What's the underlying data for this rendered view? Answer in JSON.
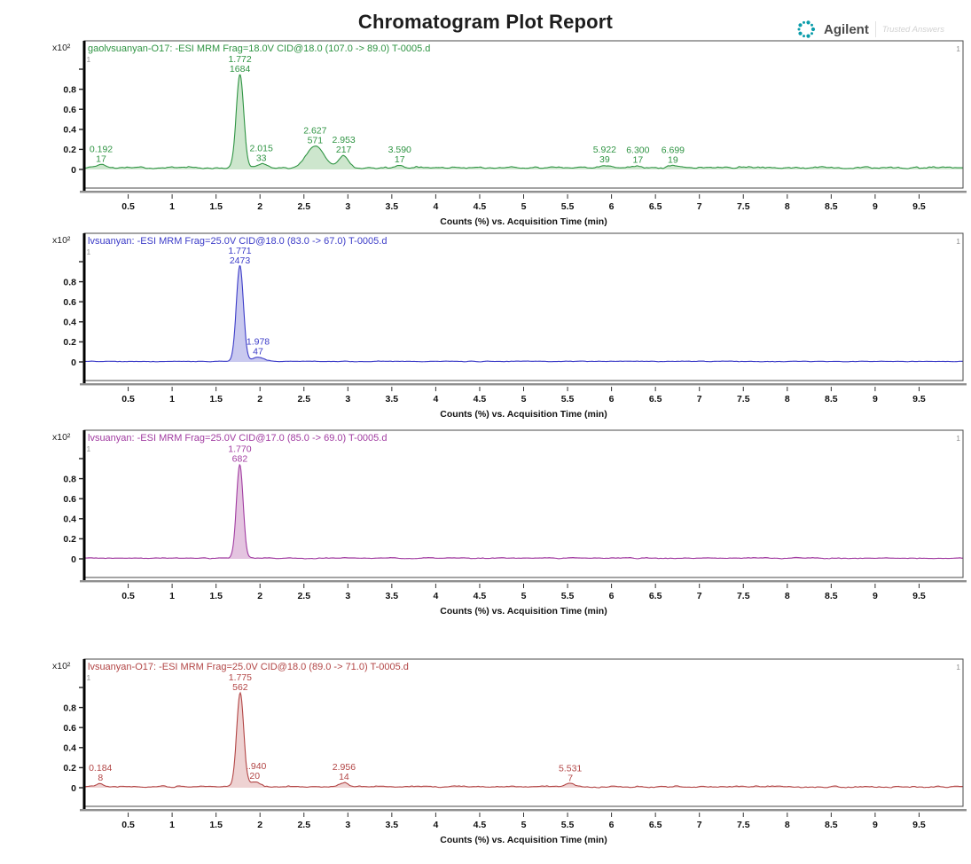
{
  "page": {
    "title": "Chromatogram Plot Report"
  },
  "brand": {
    "name": "Agilent",
    "tagline": "Trusted Answers",
    "logo_color": "#0b9dab"
  },
  "axes": {
    "x_label": "Counts (%) vs. Acquisition Time (min)",
    "x_ticks": [
      "0.5",
      "1",
      "1.5",
      "2",
      "2.5",
      "3",
      "3.5",
      "4",
      "4.5",
      "5",
      "5.5",
      "6",
      "6.5",
      "7",
      "7.5",
      "8",
      "8.5",
      "9",
      "9.5"
    ],
    "x_range": [
      0,
      10
    ],
    "y_scale_label": "x10²",
    "y_tick_labels": [
      "0.8",
      "0.6",
      "0.4",
      "0.2",
      "0"
    ],
    "y_tick_values": [
      0.8,
      0.6,
      0.4,
      0.2,
      0
    ],
    "y_top_tick": 1.0,
    "corner_marker": "1"
  },
  "chart_data": [
    {
      "type": "line",
      "title": "gaolvsuanyan-O17: -ESI MRM Frag=18.0V CID@18.0 (107.0 -> 89.0) T-0005.d",
      "color": "#2f9443",
      "fill_color": "#cde6cd",
      "xlabel": "Counts (%) vs. Acquisition Time (min)",
      "xlim": [
        0,
        10
      ],
      "ylim": [
        0,
        1.0
      ],
      "baseline": 0.018,
      "noise": 0.011,
      "peaks": [
        {
          "rt": 0.192,
          "rt_label": "0.192",
          "area_label": "17",
          "height": 0.03,
          "sigma": 0.045
        },
        {
          "rt": 1.772,
          "rt_label": "1.772",
          "area_label": "1684",
          "height": 0.93,
          "sigma": 0.042
        },
        {
          "rt": 2.015,
          "rt_label": "2.015",
          "area_label": "33",
          "height": 0.04,
          "sigma": 0.065
        },
        {
          "rt": 2.627,
          "rt_label": "2.627",
          "area_label": "571",
          "height": 0.215,
          "sigma": 0.095
        },
        {
          "rt": 2.953,
          "rt_label": "2.953",
          "area_label": "217",
          "height": 0.125,
          "sigma": 0.055
        },
        {
          "rt": 3.59,
          "rt_label": "3.590",
          "area_label": "17",
          "height": 0.025,
          "sigma": 0.05
        },
        {
          "rt": 5.922,
          "rt_label": "5.922",
          "area_label": "39",
          "height": 0.028,
          "sigma": 0.06
        },
        {
          "rt": 6.3,
          "rt_label": "6.300",
          "area_label": "17",
          "height": 0.022,
          "sigma": 0.05
        },
        {
          "rt": 6.699,
          "rt_label": "6.699",
          "area_label": "19",
          "height": 0.022,
          "sigma": 0.05
        }
      ]
    },
    {
      "type": "line",
      "title": "lvsuanyan: -ESI MRM Frag=25.0V CID@18.0 (83.0 -> 67.0) T-0005.d",
      "color": "#3c3cc8",
      "fill_color": "#c9c9ef",
      "xlabel": "Counts (%) vs. Acquisition Time (min)",
      "xlim": [
        0,
        10
      ],
      "ylim": [
        0,
        1.0
      ],
      "baseline": 0.005,
      "noise": 0.004,
      "peaks": [
        {
          "rt": 1.771,
          "rt_label": "1.771",
          "area_label": "2473",
          "height": 0.955,
          "sigma": 0.04
        },
        {
          "rt": 1.978,
          "rt_label": "1.978",
          "area_label": "47",
          "height": 0.042,
          "sigma": 0.07
        }
      ]
    },
    {
      "type": "line",
      "title": "lvsuanyan: -ESI MRM Frag=25.0V CID@17.0 (85.0 -> 69.0) T-0005.d",
      "color": "#a13ca1",
      "fill_color": "#e4c4e0",
      "xlabel": "Counts (%) vs. Acquisition Time (min)",
      "xlim": [
        0,
        10
      ],
      "ylim": [
        0,
        1.0
      ],
      "baseline": 0.007,
      "noise": 0.006,
      "peaks": [
        {
          "rt": 1.77,
          "rt_label": "1.770",
          "area_label": "682",
          "height": 0.935,
          "sigma": 0.038
        }
      ]
    },
    {
      "type": "line",
      "title": "lvsuanyan-O17: -ESI MRM Frag=25.0V CID@18.0 (89.0 -> 71.0) T-0005.d",
      "color": "#b24545",
      "fill_color": "#eed2d2",
      "xlabel": "Counts (%) vs. Acquisition Time (min)",
      "xlim": [
        0,
        10
      ],
      "ylim": [
        0,
        1.0
      ],
      "baseline": 0.01,
      "noise": 0.009,
      "peaks": [
        {
          "rt": 0.184,
          "rt_label": "0.184",
          "area_label": "8",
          "height": 0.035,
          "sigma": 0.04
        },
        {
          "rt": 1.775,
          "rt_label": "1.775",
          "area_label": "562",
          "height": 0.935,
          "sigma": 0.04
        },
        {
          "rt": 1.94,
          "rt_label": "1.940",
          "area_label": "20",
          "height": 0.05,
          "sigma": 0.06
        },
        {
          "rt": 2.956,
          "rt_label": "2.956",
          "area_label": "14",
          "height": 0.045,
          "sigma": 0.045
        },
        {
          "rt": 5.531,
          "rt_label": "5.531",
          "area_label": "7",
          "height": 0.03,
          "sigma": 0.05
        }
      ]
    }
  ]
}
